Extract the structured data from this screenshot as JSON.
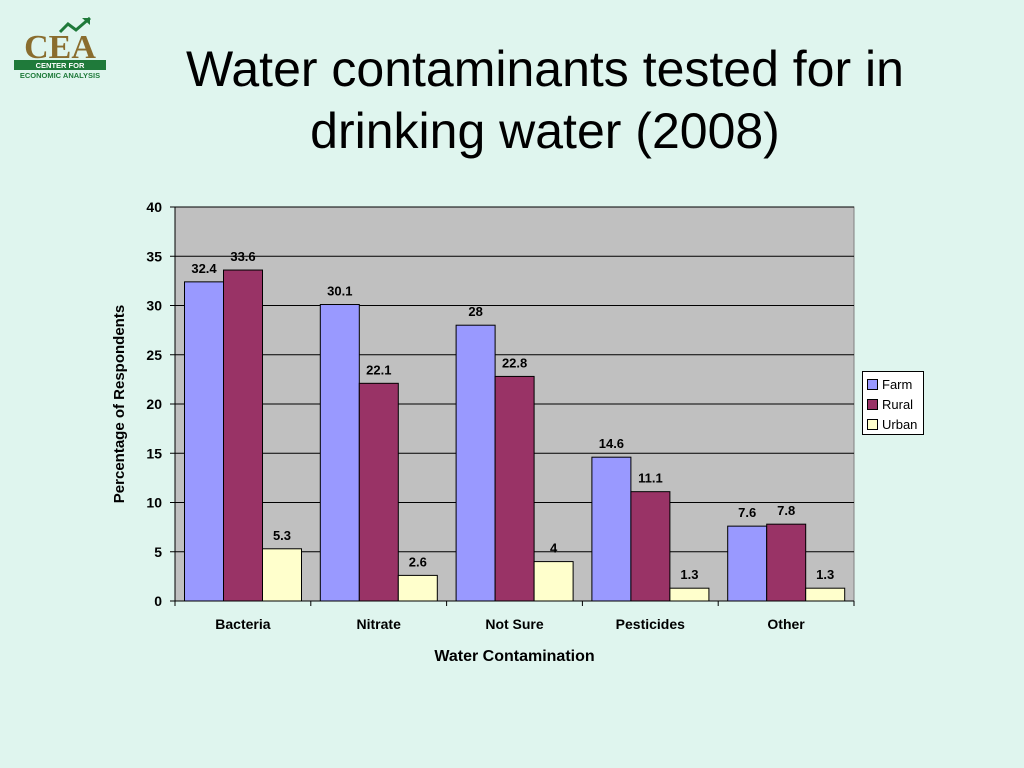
{
  "title": "Water contaminants tested for in drinking water (2008)",
  "logo": {
    "main_text": "CEA",
    "line1": "CENTER FOR",
    "line2": "ECONOMIC ANALYSIS",
    "icon": "growth-arrow-icon",
    "colors": {
      "brown": "#8a6d2e",
      "green": "#1f7a3a"
    }
  },
  "chart_data": {
    "type": "bar",
    "categories": [
      "Bacteria",
      "Nitrate",
      "Not Sure",
      "Pesticides",
      "Other"
    ],
    "series": [
      {
        "name": "Farm",
        "color": "#9999ff",
        "values": [
          32.4,
          30.1,
          28,
          14.6,
          7.6
        ],
        "labels": [
          "32.4",
          "30.1",
          "28",
          "14.6",
          "7.6"
        ]
      },
      {
        "name": "Rural",
        "color": "#993366",
        "values": [
          33.6,
          22.1,
          22.8,
          11.1,
          7.8
        ],
        "labels": [
          "33.6",
          "22.1",
          "22.8",
          "11.1",
          "7.8"
        ]
      },
      {
        "name": "Urban",
        "color": "#ffffcc",
        "values": [
          5.3,
          2.6,
          4,
          1.3,
          1.3
        ],
        "labels": [
          "5.3",
          "2.6",
          "4",
          "1.3",
          "1.3"
        ]
      }
    ],
    "xlabel": "Water Contamination",
    "ylabel": "Percentage of Respondents",
    "ylim": [
      0,
      40
    ],
    "yticks": [
      "0",
      "5",
      "10",
      "15",
      "20",
      "25",
      "30",
      "35",
      "40"
    ],
    "grid": true,
    "plot_background": "#c0c0c0",
    "legend": "right"
  }
}
